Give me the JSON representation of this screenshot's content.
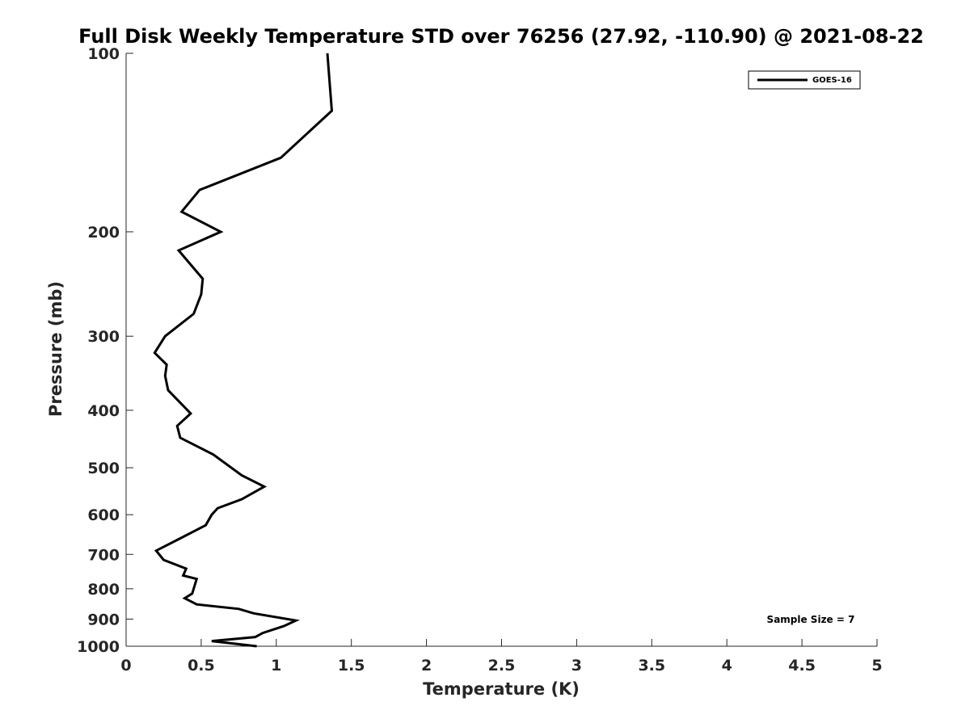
{
  "chart_data": {
    "type": "line",
    "title": "Full Disk Weekly Temperature STD over 76256 (27.92, -110.90) @ 2021-08-22",
    "xlabel": "Temperature (K)",
    "ylabel": "Pressure (mb)",
    "xlim": [
      0,
      5
    ],
    "ylim": [
      1000,
      100
    ],
    "y_scale": "log",
    "y_reversed": true,
    "x_ticks": [
      0,
      0.5,
      1,
      1.5,
      2,
      2.5,
      3,
      3.5,
      4,
      4.5,
      5
    ],
    "x_tick_labels": [
      "0",
      "0.5",
      "1",
      "1.5",
      "2",
      "2.5",
      "3",
      "3.5",
      "4",
      "4.5",
      "5"
    ],
    "y_ticks": [
      100,
      200,
      300,
      400,
      500,
      600,
      700,
      800,
      900,
      1000
    ],
    "y_tick_labels": [
      "100",
      "200",
      "300",
      "400",
      "500",
      "600",
      "700",
      "800",
      "900",
      "1000"
    ],
    "grid": false,
    "legend_position": "top-right",
    "annotation": "Sample Size = 7",
    "series": [
      {
        "name": "GOES-16",
        "color": "#000000",
        "x": [
          1.34,
          1.37,
          1.03,
          0.49,
          0.37,
          0.63,
          0.35,
          0.51,
          0.5,
          0.45,
          0.26,
          0.19,
          0.27,
          0.26,
          0.28,
          0.43,
          0.34,
          0.36,
          0.58,
          0.77,
          0.92,
          0.77,
          0.61,
          0.57,
          0.53,
          0.35,
          0.2,
          0.25,
          0.4,
          0.38,
          0.47,
          0.44,
          0.39,
          0.47,
          0.75,
          0.85,
          1.13,
          1.05,
          0.91,
          0.86,
          0.57,
          0.87
        ],
        "y": [
          100,
          125,
          150,
          170,
          185,
          200,
          215,
          240,
          255,
          275,
          300,
          320,
          335,
          350,
          370,
          405,
          425,
          445,
          475,
          515,
          538,
          565,
          585,
          600,
          625,
          660,
          690,
          715,
          740,
          760,
          770,
          815,
          830,
          850,
          865,
          880,
          905,
          925,
          950,
          965,
          980,
          1000
        ]
      }
    ]
  }
}
